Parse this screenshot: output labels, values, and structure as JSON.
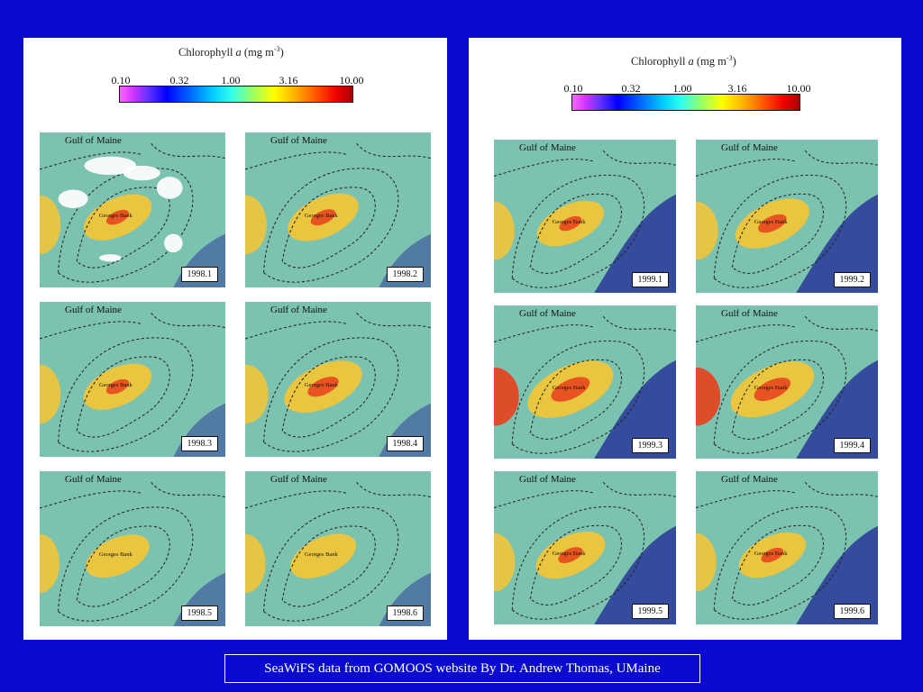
{
  "legend": {
    "title": "Chlorophyll",
    "title_italic": "a",
    "title_units": "(mg m",
    "title_sup": "-3",
    "title_close": ")",
    "ticks": [
      "0.10",
      "0.32",
      "1.00",
      "3.16",
      "10.00"
    ]
  },
  "map_labels": {
    "gulf": "Gulf of Maine",
    "bank": "Georges Bank"
  },
  "left_panel": {
    "maps": [
      {
        "year": "1998.1",
        "intensity": 0.55,
        "clouds": true
      },
      {
        "year": "1998.2",
        "intensity": 0.6,
        "clouds": false
      },
      {
        "year": "1998.3",
        "intensity": 0.55,
        "clouds": false
      },
      {
        "year": "1998.4",
        "intensity": 0.75,
        "clouds": false
      },
      {
        "year": "1998.5",
        "intensity": 0.45,
        "clouds": false
      },
      {
        "year": "1998.6",
        "intensity": 0.5,
        "clouds": false
      }
    ]
  },
  "right_panel": {
    "maps": [
      {
        "year": "1999.1",
        "intensity": 0.55,
        "clouds": false
      },
      {
        "year": "1999.2",
        "intensity": 0.7,
        "clouds": false
      },
      {
        "year": "1999.3",
        "intensity": 0.95,
        "clouds": false
      },
      {
        "year": "1999.4",
        "intensity": 0.9,
        "clouds": false
      },
      {
        "year": "1999.5",
        "intensity": 0.6,
        "clouds": false
      },
      {
        "year": "1999.6",
        "intensity": 0.55,
        "clouds": false
      }
    ]
  },
  "caption": "SeaWiFS data from GOMOOS website By Dr. Andrew Thomas, UMaine",
  "colors": {
    "background": "#0a0ad0",
    "water_low": "#2e3f9a",
    "water_mid": "#7cc2b0",
    "bank_high": "#f0c53a",
    "bank_peak": "#e8401c"
  }
}
